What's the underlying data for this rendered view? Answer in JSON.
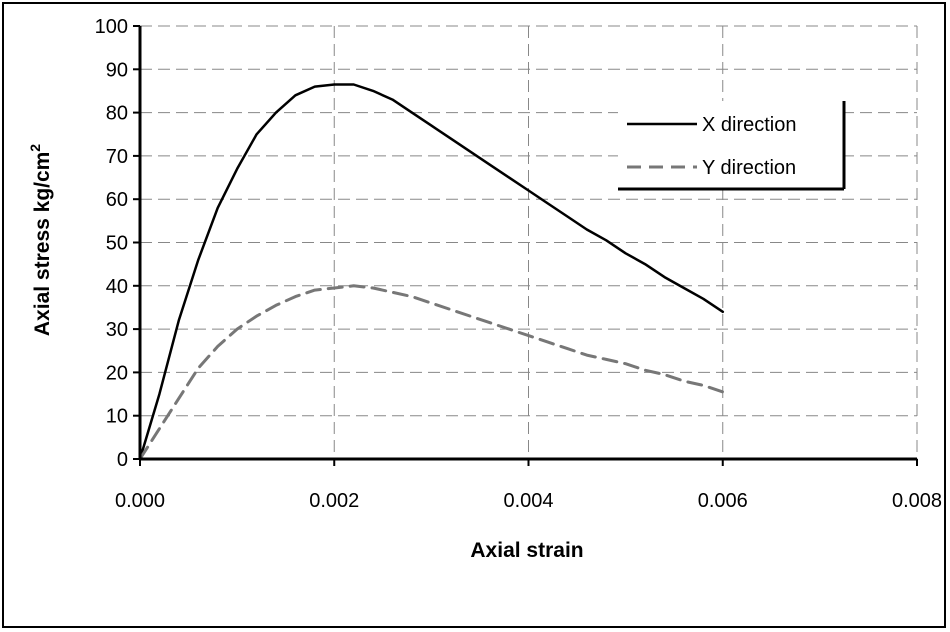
{
  "chart_data": {
    "type": "line",
    "title": "",
    "xlabel": "Axial strain",
    "ylabel": "Axial stress kg/cm",
    "ylabel_superscript": "2",
    "xlim": [
      0,
      0.008
    ],
    "ylim": [
      0,
      100
    ],
    "xticks": [
      "0.000",
      "0.002",
      "0.004",
      "0.006",
      "0.008"
    ],
    "yticks": [
      "0",
      "10",
      "20",
      "30",
      "40",
      "50",
      "60",
      "70",
      "80",
      "90",
      "100"
    ],
    "grid": true,
    "legend": "top-right",
    "series": [
      {
        "name": "X direction",
        "style": "solid",
        "color": "#000000",
        "points": [
          [
            0,
            0
          ],
          [
            0.0002,
            15
          ],
          [
            0.0004,
            32
          ],
          [
            0.0006,
            46
          ],
          [
            0.0008,
            58
          ],
          [
            0.001,
            67
          ],
          [
            0.0012,
            75
          ],
          [
            0.0014,
            80
          ],
          [
            0.0016,
            84
          ],
          [
            0.0018,
            86
          ],
          [
            0.002,
            86.5
          ],
          [
            0.0022,
            86.5
          ],
          [
            0.0024,
            85
          ],
          [
            0.0026,
            83
          ],
          [
            0.0028,
            80
          ],
          [
            0.003,
            77
          ],
          [
            0.0032,
            74
          ],
          [
            0.0034,
            71
          ],
          [
            0.0036,
            68
          ],
          [
            0.0038,
            65
          ],
          [
            0.004,
            62
          ],
          [
            0.0042,
            59
          ],
          [
            0.0044,
            56
          ],
          [
            0.0046,
            53
          ],
          [
            0.0048,
            50.5
          ],
          [
            0.005,
            47.5
          ],
          [
            0.0052,
            45
          ],
          [
            0.0054,
            42
          ],
          [
            0.0056,
            39.5
          ],
          [
            0.0058,
            37
          ],
          [
            0.006,
            34
          ]
        ]
      },
      {
        "name": "Y direction",
        "style": "dashed",
        "color": "#777777",
        "points": [
          [
            0,
            0
          ],
          [
            0.0002,
            7
          ],
          [
            0.0004,
            14
          ],
          [
            0.0006,
            21
          ],
          [
            0.0008,
            26
          ],
          [
            0.001,
            30
          ],
          [
            0.0012,
            33
          ],
          [
            0.0014,
            35.5
          ],
          [
            0.0016,
            37.5
          ],
          [
            0.0018,
            39
          ],
          [
            0.002,
            39.5
          ],
          [
            0.0022,
            40
          ],
          [
            0.0024,
            39.5
          ],
          [
            0.0026,
            38.5
          ],
          [
            0.0028,
            37.5
          ],
          [
            0.003,
            36
          ],
          [
            0.0032,
            34.5
          ],
          [
            0.0034,
            33
          ],
          [
            0.0036,
            31.5
          ],
          [
            0.0038,
            30
          ],
          [
            0.004,
            28.5
          ],
          [
            0.0042,
            27
          ],
          [
            0.0044,
            25.5
          ],
          [
            0.0046,
            24
          ],
          [
            0.0048,
            23
          ],
          [
            0.005,
            22
          ],
          [
            0.0052,
            20.5
          ],
          [
            0.0054,
            19.5
          ],
          [
            0.0056,
            18
          ],
          [
            0.0058,
            17
          ],
          [
            0.006,
            15.5
          ]
        ]
      }
    ]
  }
}
